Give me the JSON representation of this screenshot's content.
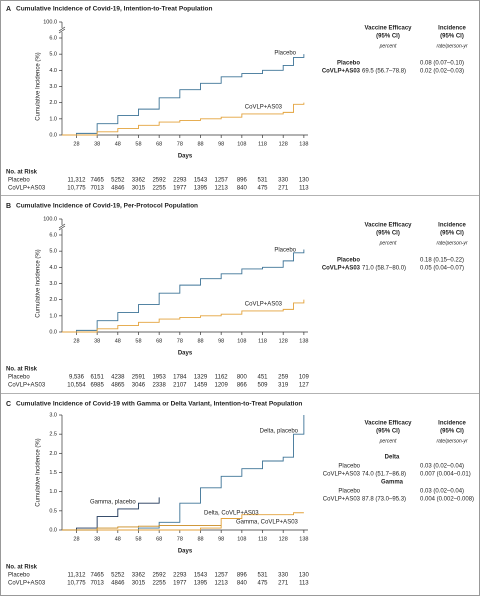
{
  "chart_data": [
    {
      "type": "line",
      "panel": "A",
      "title": "Cumulative Incidence of Covid-19, Intention-to-Treat Population",
      "xlabel": "Days",
      "ylabel": "Cumulative Incidence (%)",
      "x": [
        21,
        28,
        38,
        48,
        58,
        68,
        78,
        88,
        98,
        108,
        118,
        128,
        133,
        138
      ],
      "xlim": [
        21,
        140
      ],
      "xticks": [
        28,
        38,
        48,
        58,
        68,
        78,
        88,
        98,
        108,
        118,
        128,
        138
      ],
      "ylim": [
        0,
        6
      ],
      "yticks": [
        {
          "value": 0,
          "label": "0.0"
        },
        {
          "value": 1,
          "label": "1.0"
        },
        {
          "value": 2,
          "label": "2.0"
        },
        {
          "value": 3,
          "label": "3.0"
        },
        {
          "value": 4,
          "label": "4.0"
        },
        {
          "value": 5,
          "label": "5.0"
        },
        {
          "value": 6,
          "label": "6.0"
        }
      ],
      "y_break_tick": {
        "value": 100,
        "label": "100.0"
      },
      "series": [
        {
          "name": "Placebo",
          "color": "#3d7396",
          "values": [
            0,
            0.1,
            0.7,
            1.2,
            1.6,
            2.3,
            2.8,
            3.2,
            3.6,
            3.8,
            4.0,
            4.3,
            4.8,
            5.0
          ]
        },
        {
          "name": "CoVLP+AS03",
          "color": "#e3a23b",
          "values": [
            0,
            0,
            0.2,
            0.4,
            0.6,
            0.8,
            0.9,
            1.0,
            1.1,
            1.3,
            1.3,
            1.4,
            1.9,
            2.0
          ]
        }
      ],
      "efficacy": {
        "headers": [
          [
            "Vaccine Efficacy",
            "(95% CI)"
          ],
          [
            "Incidence",
            "(95% CI)"
          ]
        ],
        "units": [
          "percent",
          "rate/person-yr"
        ],
        "groups": [
          {
            "rows": [
              {
                "label": "Placebo",
                "incidence": "0.08 (0.07–0.10)"
              },
              {
                "label": "CoVLP+AS03",
                "efficacy": "69.5 (56.7–78.8)",
                "incidence": "0.02 (0.02–0.03)"
              }
            ]
          }
        ]
      },
      "risk": {
        "title": "No. at Risk",
        "rows": [
          {
            "name": "Placebo",
            "values": [
              "11,312",
              "7465",
              "5252",
              "3362",
              "2592",
              "2293",
              "1543",
              "1257",
              "896",
              "531",
              "330",
              "130"
            ]
          },
          {
            "name": "CoVLP+AS03",
            "values": [
              "10,775",
              "7013",
              "4846",
              "3015",
              "2255",
              "1977",
              "1395",
              "1213",
              "840",
              "475",
              "271",
              "113"
            ]
          }
        ]
      }
    },
    {
      "type": "line",
      "panel": "B",
      "title": "Cumulative Incidence of Covid-19, Per-Protocol Population",
      "xlabel": "Days",
      "ylabel": "Cumulative Incidence (%)",
      "x": [
        21,
        28,
        38,
        48,
        58,
        68,
        78,
        88,
        98,
        108,
        118,
        128,
        133,
        138
      ],
      "xlim": [
        21,
        140
      ],
      "xticks": [
        28,
        38,
        48,
        58,
        68,
        78,
        88,
        98,
        108,
        118,
        128,
        138
      ],
      "ylim": [
        0,
        6
      ],
      "yticks": [
        {
          "value": 0,
          "label": "0.0"
        },
        {
          "value": 1,
          "label": "1.0"
        },
        {
          "value": 2,
          "label": "2.0"
        },
        {
          "value": 3,
          "label": "3.0"
        },
        {
          "value": 4,
          "label": "4.0"
        },
        {
          "value": 5,
          "label": "5.0"
        },
        {
          "value": 6,
          "label": "6.0"
        }
      ],
      "y_break_tick": {
        "value": 100,
        "label": "100.0"
      },
      "series": [
        {
          "name": "Placebo",
          "color": "#3d7396",
          "values": [
            0,
            0.1,
            0.7,
            1.2,
            1.7,
            2.4,
            2.9,
            3.3,
            3.6,
            3.9,
            4.0,
            4.4,
            4.9,
            5.1
          ]
        },
        {
          "name": "CoVLP+AS03",
          "color": "#e3a23b",
          "values": [
            0,
            0,
            0.2,
            0.4,
            0.6,
            0.8,
            0.9,
            1.0,
            1.1,
            1.3,
            1.3,
            1.4,
            1.8,
            2.0
          ]
        }
      ],
      "efficacy": {
        "headers": [
          [
            "Vaccine Efficacy",
            "(95% CI)"
          ],
          [
            "Incidence",
            "(95% CI)"
          ]
        ],
        "units": [
          "percent",
          "rate/person-yr"
        ],
        "groups": [
          {
            "rows": [
              {
                "label": "Placebo",
                "incidence": "0.18 (0.15–0.22)"
              },
              {
                "label": "CoVLP+AS03",
                "efficacy": "71.0 (58.7–80.0)",
                "incidence": "0.05 (0.04–0.07)"
              }
            ]
          }
        ]
      },
      "risk": {
        "title": "No. at Risk",
        "rows": [
          {
            "name": "Placebo",
            "values": [
              "9,536",
              "6151",
              "4238",
              "2591",
              "1953",
              "1784",
              "1329",
              "1162",
              "800",
              "451",
              "259",
              "109"
            ]
          },
          {
            "name": "CoVLP+AS03",
            "values": [
              "10,554",
              "6985",
              "4865",
              "3046",
              "2338",
              "2107",
              "1459",
              "1209",
              "866",
              "509",
              "319",
              "127"
            ]
          }
        ]
      }
    },
    {
      "type": "line",
      "panel": "C",
      "title": "Cumulative Incidence of Covid-19 with Gamma or Delta Variant, Intention-to-Treat Population",
      "xlabel": "Days",
      "ylabel": "Cumulative Incidence (%)",
      "x": [
        21,
        28,
        38,
        48,
        58,
        68,
        78,
        88,
        98,
        108,
        118,
        128,
        133,
        138
      ],
      "xlim": [
        21,
        140
      ],
      "xticks": [
        28,
        38,
        48,
        58,
        68,
        78,
        88,
        98,
        108,
        118,
        128,
        138
      ],
      "ylim": [
        0,
        3
      ],
      "yticks": [
        {
          "value": 0,
          "label": "0.0"
        },
        0.5,
        {
          "value": 1,
          "label": "1.0"
        },
        1.5,
        {
          "value": 2,
          "label": "2.0"
        },
        2.5,
        {
          "value": 3,
          "label": "3.0"
        }
      ],
      "series": [
        {
          "name": "Delta, placebo",
          "color": "#3d7396",
          "values": [
            0,
            0,
            0,
            0,
            0.05,
            0.2,
            0.7,
            1.1,
            1.4,
            1.6,
            1.8,
            1.9,
            2.5,
            3.0
          ]
        },
        {
          "name": "Gamma, placebo",
          "color": "#1d3557",
          "values": [
            0,
            0.05,
            0.35,
            0.55,
            0.7,
            0.85,
            null,
            null,
            null,
            null,
            null,
            null,
            null,
            null
          ]
        },
        {
          "name": "Delta, CoVLP+AS03",
          "color": "#e3a23b",
          "values": [
            0,
            0,
            0,
            0,
            0,
            0,
            0,
            0.05,
            0.3,
            0.4,
            0.4,
            0.4,
            0.45,
            0.45
          ]
        },
        {
          "name": "Gamma, CoVLP+AS03",
          "color": "#c98a1e",
          "values": [
            0,
            0,
            0.05,
            0.08,
            0.1,
            0.12,
            0.12,
            0.12,
            0.12,
            null,
            null,
            null,
            null,
            null
          ]
        }
      ],
      "efficacy": {
        "headers": [
          [
            "Vaccine Efficacy",
            "(95% CI)"
          ],
          [
            "Incidence",
            "(95% CI)"
          ]
        ],
        "units": [
          "percent",
          "rate/person-yr"
        ],
        "groups": [
          {
            "name": "Delta",
            "rows": [
              {
                "label": "Placebo",
                "incidence": "0.03 (0.02–0.04)"
              },
              {
                "label": "CoVLP+AS03",
                "efficacy": "74.0 (51.7–86.8)",
                "incidence": "0.007 (0.004–0.01)"
              }
            ]
          },
          {
            "name": "Gamma",
            "rows": [
              {
                "label": "Placebo",
                "incidence": "0.03 (0.02–0.04)"
              },
              {
                "label": "CoVLP+AS03",
                "efficacy": "87.8 (73.0–95.3)",
                "incidence": "0.004 (0.002–0.008)"
              }
            ]
          }
        ]
      },
      "risk": {
        "title": "No. at Risk",
        "rows": [
          {
            "name": "Placebo",
            "values": [
              "11,312",
              "7465",
              "5252",
              "3362",
              "2592",
              "2293",
              "1543",
              "1257",
              "896",
              "531",
              "330",
              "130"
            ]
          },
          {
            "name": "CoVLP+AS03",
            "values": [
              "10,775",
              "7013",
              "4846",
              "3015",
              "2255",
              "1977",
              "1395",
              "1213",
              "840",
              "475",
              "271",
              "113"
            ]
          }
        ]
      }
    }
  ]
}
